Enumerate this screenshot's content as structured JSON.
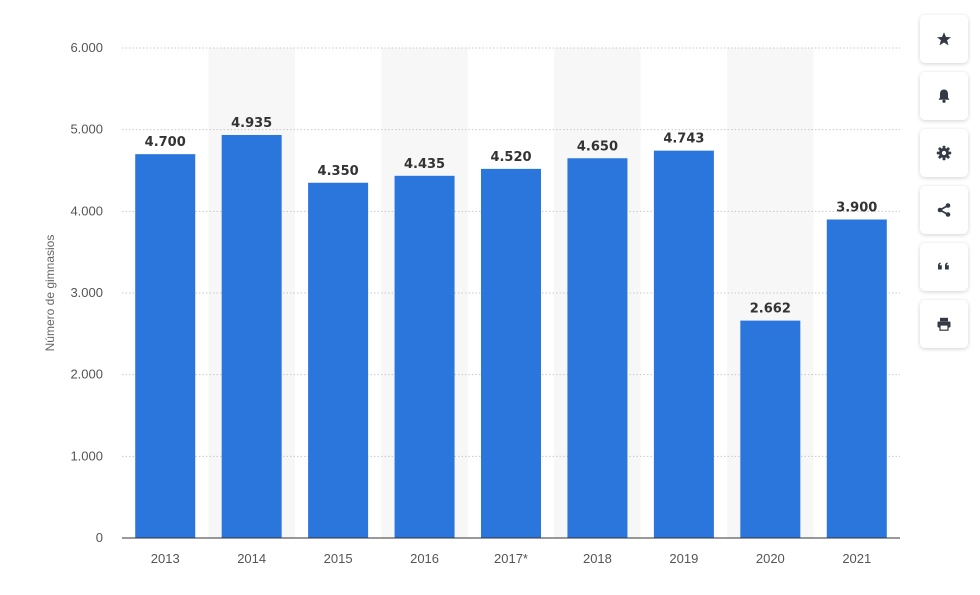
{
  "chart_data": {
    "type": "bar",
    "categories": [
      "2013",
      "2014",
      "2015",
      "2016",
      "2017*",
      "2018",
      "2019",
      "2020",
      "2021"
    ],
    "values": [
      4700,
      4935,
      4350,
      4435,
      4520,
      4650,
      4743,
      2662,
      3900
    ],
    "value_labels": [
      "4.700",
      "4.935",
      "4.350",
      "4.435",
      "4.520",
      "4.650",
      "4.743",
      "2.662",
      "3.900"
    ],
    "ylabel": "Número de gimnasios",
    "ylim": [
      0,
      6000
    ],
    "yticks": [
      0,
      1000,
      2000,
      3000,
      4000,
      5000,
      6000
    ],
    "ytick_labels": [
      "0",
      "1.000",
      "2.000",
      "3.000",
      "4.000",
      "5.000",
      "6.000"
    ],
    "grid": true,
    "bar_color": "#2a76dd",
    "alt_band_color": "#f7f7f7"
  },
  "toolbar": {
    "icons": [
      "star-icon",
      "bell-icon",
      "gear-icon",
      "share-icon",
      "quote-icon",
      "print-icon"
    ],
    "icon_color": "#333a44"
  }
}
